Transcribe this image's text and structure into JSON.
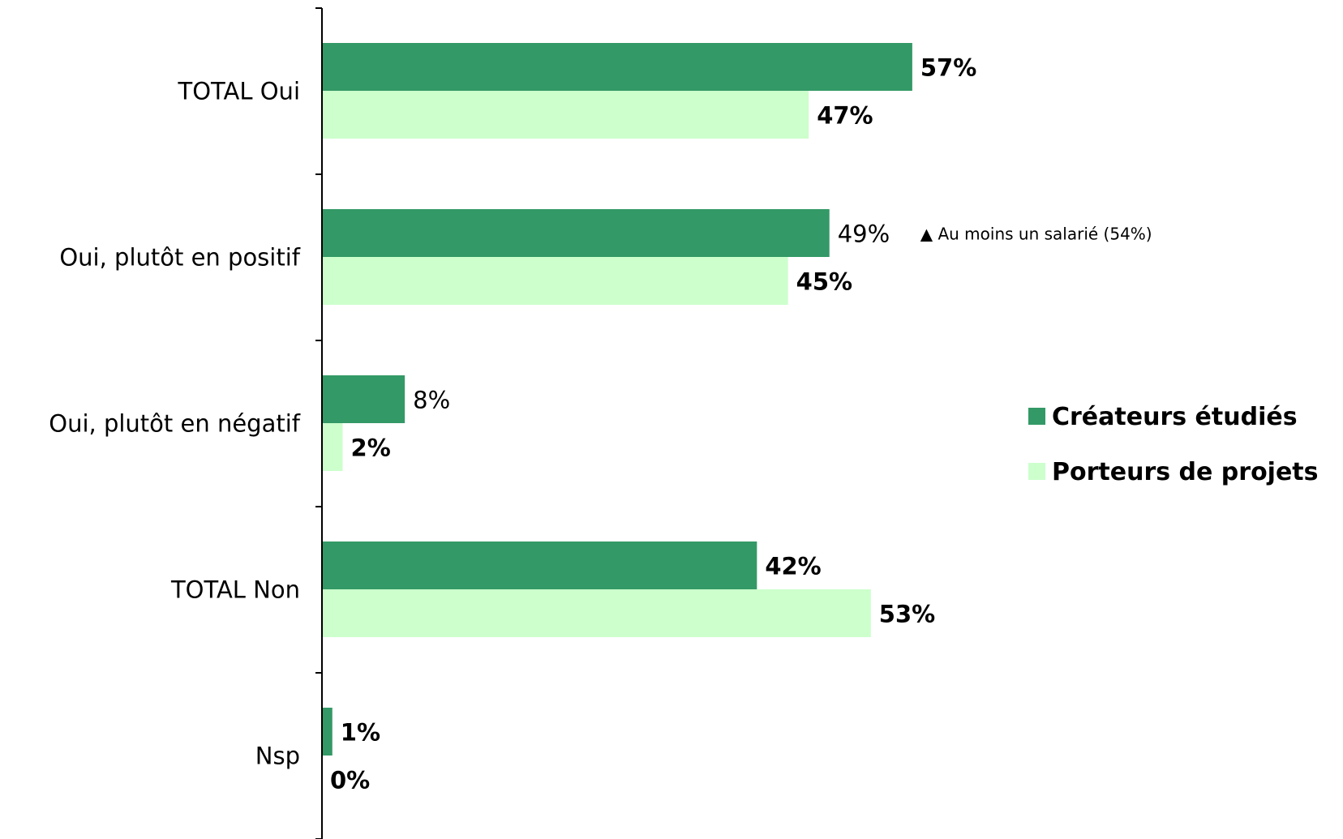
{
  "chart_data": {
    "type": "bar",
    "orientation": "horizontal",
    "categories": [
      "TOTAL Oui",
      "Oui, plutôt en positif",
      "Oui, plutôt en négatif",
      "TOTAL Non",
      "Nsp"
    ],
    "series": [
      {
        "name": "Créateurs étudiés",
        "color": "#339966",
        "values": [
          57,
          49,
          8,
          42,
          1
        ],
        "labels": [
          "57%",
          "49%",
          "8%",
          "42%",
          "1%"
        ],
        "label_bold": [
          true,
          false,
          false,
          true,
          true
        ]
      },
      {
        "name": "Porteurs de projets",
        "color": "#ccffcc",
        "values": [
          47,
          45,
          2,
          53,
          0
        ],
        "labels": [
          "47%",
          "45%",
          "2%",
          "53%",
          "0%"
        ],
        "label_bold": [
          true,
          true,
          true,
          true,
          true
        ]
      }
    ],
    "xlim": [
      0,
      100
    ],
    "unit": "%",
    "grid": false,
    "legend_position": "right",
    "annotation": {
      "category_index": 1,
      "symbol": "▲",
      "text": "Au moins un salarié (54%)"
    }
  }
}
